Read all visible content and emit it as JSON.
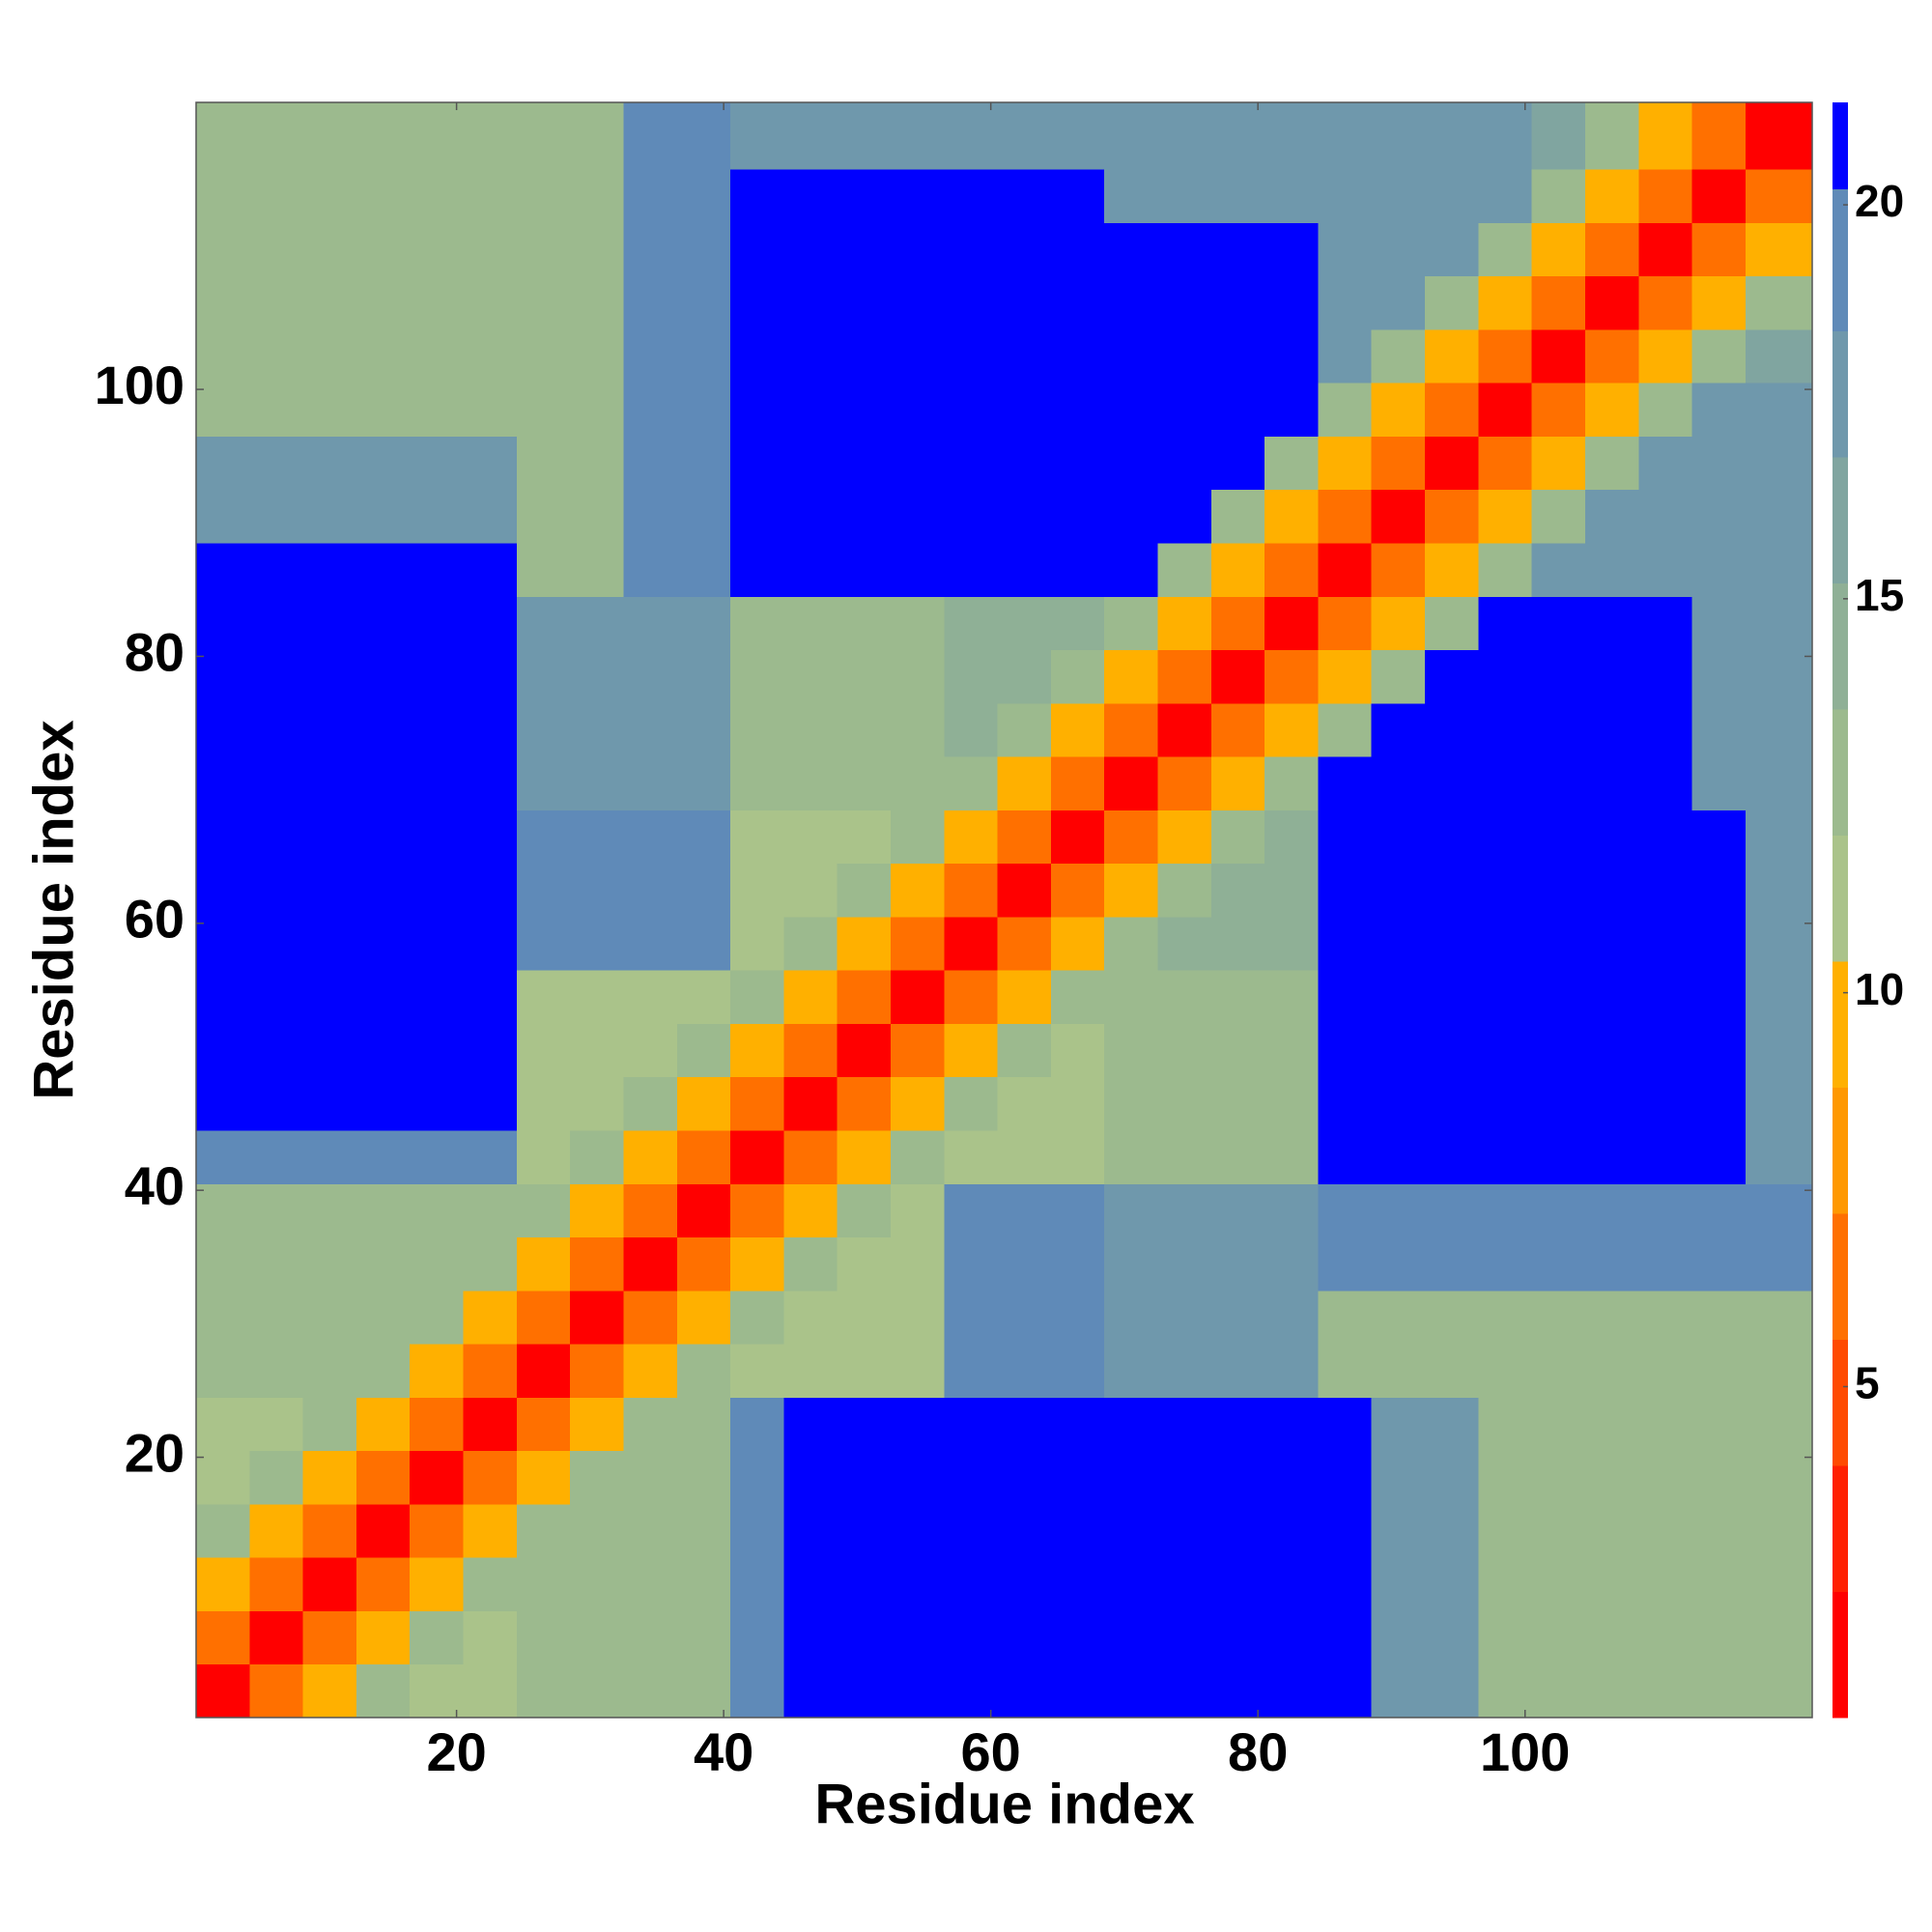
{
  "chart_data": {
    "type": "heatmap",
    "xlabel": "Residue index",
    "ylabel": "Residue index",
    "xlim": [
      0.5,
      121.5
    ],
    "ylim": [
      0.5,
      121.5
    ],
    "xticks": [
      20,
      40,
      60,
      80,
      100
    ],
    "yticks": [
      20,
      40,
      60,
      80,
      100
    ],
    "x_bins": [
      0.5,
      4.5,
      8.5,
      12.5,
      16.5,
      20.5,
      24.5,
      28.5,
      32.5,
      36.5,
      40.5,
      44.5,
      48.5,
      52.5,
      56.5,
      60.5,
      64.5,
      68.5,
      72.5,
      76.5,
      80.5,
      84.5,
      88.5,
      92.5,
      96.5,
      100.5,
      104.5,
      108.5,
      112.5,
      116.5,
      121.5
    ],
    "y_bins": [
      0.5,
      4.5,
      8.5,
      12.5,
      16.5,
      20.5,
      24.5,
      28.5,
      32.5,
      36.5,
      40.5,
      44.5,
      48.5,
      52.5,
      56.5,
      60.5,
      64.5,
      68.5,
      72.5,
      76.5,
      80.5,
      84.5,
      88.5,
      92.5,
      96.5,
      100.5,
      104.5,
      108.5,
      112.5,
      116.5,
      121.5
    ],
    "z": [
      [
        2,
        6,
        10,
        13,
        11,
        11,
        12,
        12,
        12,
        12,
        20,
        22,
        22,
        22,
        22,
        22,
        22,
        22,
        22,
        22,
        22,
        22,
        18,
        18,
        12,
        12,
        12,
        12,
        12,
        12
      ],
      [
        6,
        2,
        6,
        10,
        13,
        11,
        12,
        12,
        12,
        12,
        20,
        22,
        22,
        22,
        22,
        22,
        22,
        22,
        22,
        22,
        22,
        22,
        18,
        18,
        12,
        12,
        12,
        12,
        12,
        12
      ],
      [
        10,
        6,
        2,
        6,
        10,
        13,
        12,
        12,
        12,
        12,
        20,
        22,
        22,
        22,
        22,
        22,
        22,
        22,
        22,
        22,
        22,
        22,
        18,
        18,
        12,
        12,
        12,
        12,
        12,
        12
      ],
      [
        13,
        10,
        6,
        2,
        6,
        10,
        13,
        12,
        12,
        12,
        20,
        22,
        22,
        22,
        22,
        22,
        22,
        22,
        22,
        22,
        22,
        22,
        18,
        18,
        12,
        12,
        12,
        12,
        12,
        12
      ],
      [
        11,
        13,
        10,
        6,
        2,
        6,
        10,
        13,
        12,
        12,
        20,
        22,
        22,
        22,
        22,
        22,
        22,
        22,
        22,
        22,
        22,
        22,
        18,
        18,
        12,
        12,
        12,
        12,
        12,
        12
      ],
      [
        11,
        11,
        13,
        10,
        6,
        2,
        6,
        10,
        13,
        12,
        20,
        22,
        22,
        22,
        22,
        22,
        22,
        22,
        22,
        22,
        22,
        22,
        18,
        18,
        12,
        12,
        12,
        12,
        12,
        12
      ],
      [
        12,
        12,
        12,
        13,
        10,
        6,
        2,
        6,
        10,
        13,
        11,
        11,
        11,
        11,
        19,
        19,
        19,
        18,
        18,
        18,
        18,
        12,
        12,
        12,
        12,
        12,
        12,
        12,
        12,
        12
      ],
      [
        12,
        12,
        12,
        12,
        13,
        10,
        6,
        2,
        6,
        10,
        13,
        11,
        11,
        11,
        19,
        19,
        19,
        18,
        18,
        18,
        18,
        12,
        12,
        12,
        12,
        12,
        12,
        12,
        12,
        12
      ],
      [
        12,
        12,
        12,
        12,
        12,
        13,
        10,
        6,
        2,
        6,
        10,
        13,
        11,
        11,
        19,
        19,
        19,
        18,
        18,
        18,
        18,
        19,
        19,
        19,
        20,
        20,
        20,
        20,
        20,
        20
      ],
      [
        12,
        12,
        12,
        12,
        12,
        12,
        13,
        10,
        6,
        2,
        6,
        10,
        13,
        11,
        19,
        19,
        19,
        18,
        18,
        18,
        18,
        19,
        19,
        19,
        20,
        20,
        20,
        20,
        20,
        20
      ],
      [
        20,
        20,
        20,
        20,
        20,
        20,
        11,
        13,
        10,
        6,
        2,
        6,
        10,
        13,
        11,
        11,
        11,
        12,
        12,
        12,
        12,
        22,
        22,
        22,
        22,
        22,
        22,
        22,
        22,
        17
      ],
      [
        22,
        22,
        22,
        22,
        22,
        22,
        11,
        11,
        13,
        10,
        6,
        2,
        6,
        10,
        13,
        11,
        11,
        12,
        12,
        12,
        12,
        22,
        22,
        22,
        22,
        22,
        22,
        22,
        22,
        17
      ],
      [
        22,
        22,
        22,
        22,
        22,
        22,
        11,
        11,
        11,
        13,
        10,
        6,
        2,
        6,
        10,
        13,
        11,
        12,
        12,
        12,
        12,
        22,
        22,
        22,
        22,
        22,
        22,
        22,
        22,
        17
      ],
      [
        22,
        22,
        22,
        22,
        22,
        22,
        11,
        11,
        11,
        11,
        13,
        10,
        6,
        2,
        6,
        10,
        13,
        12,
        12,
        12,
        12,
        22,
        22,
        22,
        22,
        22,
        22,
        22,
        22,
        17
      ],
      [
        22,
        22,
        22,
        22,
        22,
        22,
        19,
        19,
        19,
        19,
        11,
        13,
        10,
        6,
        2,
        6,
        10,
        13,
        14,
        14,
        14,
        22,
        22,
        22,
        22,
        22,
        22,
        22,
        22,
        17
      ],
      [
        22,
        22,
        22,
        22,
        22,
        22,
        19,
        19,
        19,
        19,
        11,
        11,
        13,
        10,
        6,
        2,
        6,
        10,
        13,
        14,
        14,
        22,
        22,
        22,
        22,
        22,
        22,
        22,
        22,
        17
      ],
      [
        22,
        22,
        22,
        22,
        22,
        22,
        19,
        19,
        19,
        19,
        11,
        11,
        11,
        13,
        10,
        6,
        2,
        6,
        10,
        13,
        14,
        22,
        22,
        22,
        22,
        22,
        22,
        22,
        22,
        17
      ],
      [
        22,
        22,
        22,
        22,
        22,
        22,
        18,
        18,
        18,
        18,
        12,
        12,
        12,
        12,
        13,
        10,
        6,
        2,
        6,
        10,
        13,
        22,
        22,
        22,
        22,
        22,
        22,
        22,
        17,
        17
      ],
      [
        22,
        22,
        22,
        22,
        22,
        22,
        18,
        18,
        18,
        18,
        12,
        12,
        12,
        12,
        14,
        13,
        10,
        6,
        2,
        6,
        10,
        13,
        22,
        22,
        22,
        22,
        22,
        22,
        17,
        17
      ],
      [
        22,
        22,
        22,
        22,
        22,
        22,
        18,
        18,
        18,
        18,
        12,
        12,
        12,
        12,
        14,
        14,
        13,
        10,
        6,
        2,
        6,
        10,
        13,
        22,
        22,
        22,
        22,
        22,
        17,
        17
      ],
      [
        22,
        22,
        22,
        22,
        22,
        22,
        18,
        18,
        18,
        18,
        12,
        12,
        12,
        12,
        14,
        14,
        14,
        13,
        10,
        6,
        2,
        6,
        10,
        13,
        22,
        22,
        22,
        22,
        17,
        17
      ],
      [
        22,
        22,
        22,
        22,
        22,
        22,
        12,
        12,
        19,
        19,
        22,
        22,
        22,
        22,
        22,
        22,
        22,
        22,
        13,
        10,
        6,
        2,
        6,
        10,
        13,
        17,
        17,
        17,
        17,
        17
      ],
      [
        18,
        18,
        18,
        18,
        18,
        18,
        12,
        12,
        19,
        19,
        22,
        22,
        22,
        22,
        22,
        22,
        22,
        22,
        22,
        13,
        10,
        6,
        2,
        6,
        10,
        13,
        17,
        17,
        17,
        17
      ],
      [
        18,
        18,
        18,
        18,
        18,
        18,
        12,
        12,
        19,
        19,
        22,
        22,
        22,
        22,
        22,
        22,
        22,
        22,
        22,
        22,
        13,
        10,
        6,
        2,
        6,
        10,
        13,
        17,
        17,
        17
      ],
      [
        12,
        12,
        12,
        12,
        12,
        12,
        12,
        12,
        20,
        20,
        22,
        22,
        22,
        22,
        22,
        22,
        22,
        22,
        22,
        22,
        22,
        13,
        10,
        6,
        2,
        6,
        10,
        13,
        17,
        17
      ],
      [
        12,
        12,
        12,
        12,
        12,
        12,
        12,
        12,
        20,
        20,
        22,
        22,
        22,
        22,
        22,
        22,
        22,
        22,
        22,
        22,
        22,
        17,
        13,
        10,
        6,
        2,
        6,
        10,
        13,
        16
      ],
      [
        12,
        12,
        12,
        12,
        12,
        12,
        12,
        12,
        20,
        20,
        22,
        22,
        22,
        22,
        22,
        22,
        22,
        22,
        22,
        22,
        22,
        17,
        17,
        13,
        10,
        6,
        2,
        6,
        10,
        13
      ],
      [
        12,
        12,
        12,
        12,
        12,
        12,
        12,
        12,
        20,
        20,
        22,
        22,
        22,
        22,
        22,
        22,
        22,
        22,
        22,
        22,
        22,
        17,
        17,
        17,
        13,
        10,
        6,
        2,
        6,
        10
      ],
      [
        12,
        12,
        12,
        12,
        12,
        12,
        12,
        12,
        20,
        20,
        22,
        22,
        22,
        22,
        22,
        22,
        22,
        17,
        17,
        17,
        17,
        17,
        17,
        17,
        17,
        13,
        10,
        6,
        2,
        6
      ],
      [
        12,
        12,
        12,
        12,
        12,
        12,
        12,
        12,
        20,
        20,
        17,
        17,
        17,
        17,
        17,
        17,
        17,
        17,
        17,
        17,
        17,
        17,
        17,
        17,
        17,
        16,
        13,
        10,
        6,
        2
      ]
    ],
    "colorbar": {
      "levels": [
        0.8,
        2.4,
        4,
        5.6,
        7.2,
        8.8,
        10.4,
        12,
        13.6,
        15.2,
        16.8,
        18.4,
        20.2,
        21.3
      ],
      "colors": [
        "#ff0000",
        "#ff2000",
        "#ff4a00",
        "#ff7000",
        "#ff9800",
        "#ffb000",
        "#aac38a",
        "#9cba8e",
        "#8fb096",
        "#80a5a0",
        "#6f98ac",
        "#5f8ab8",
        "#0000ff"
      ],
      "ticks": [
        5,
        10,
        15,
        20
      ]
    }
  }
}
